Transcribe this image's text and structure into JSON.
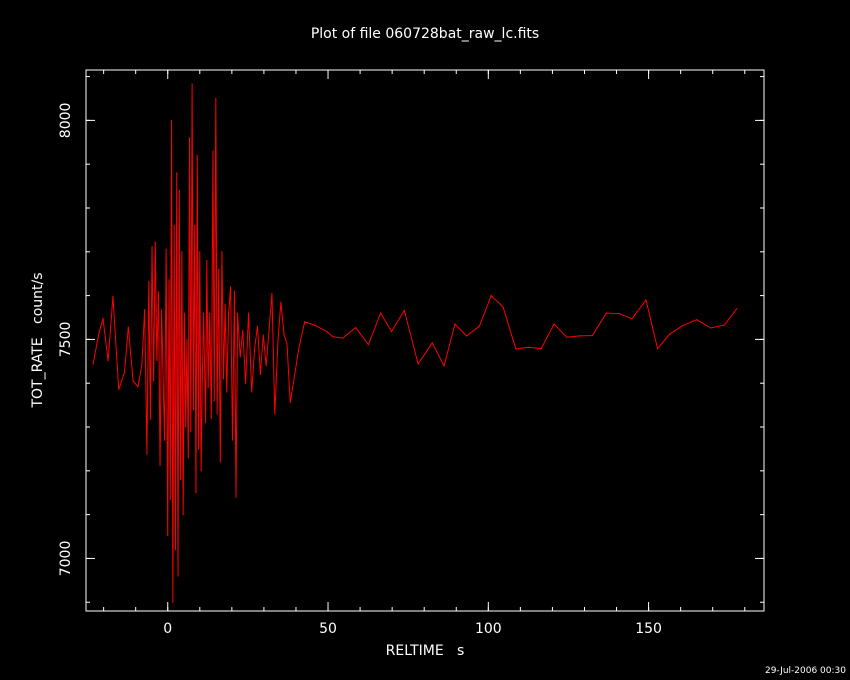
{
  "chart_data": {
    "type": "line",
    "title": "Plot of file 060728bat_raw_lc.fits",
    "xlabel": "RELTIME   s",
    "ylabel": "TOT_RATE   count/s",
    "xlim": [
      -25.5,
      186
    ],
    "ylim": [
      6880,
      8115
    ],
    "x_ticks": [
      0,
      50,
      100,
      150
    ],
    "y_ticks": [
      7000,
      7500,
      8000
    ],
    "x_minor_step": 10,
    "y_minor_step": 100,
    "line_color": "#ff0000",
    "axis_color": "#ffffff",
    "background": "#000000",
    "series": [
      {
        "values": [
          [
            -23.3,
            7444
          ],
          [
            -21.4,
            7516
          ],
          [
            -20.2,
            7548
          ],
          [
            -18.6,
            7451
          ],
          [
            -17.1,
            7598
          ],
          [
            -15.3,
            7386
          ],
          [
            -13.5,
            7424
          ],
          [
            -12.3,
            7528
          ],
          [
            -10.8,
            7405
          ],
          [
            -9.3,
            7392
          ],
          [
            -8.1,
            7440
          ],
          [
            -7.2,
            7568
          ],
          [
            -6.5,
            7238
          ],
          [
            -5.9,
            7632
          ],
          [
            -5.4,
            7318
          ],
          [
            -4.9,
            7712
          ],
          [
            -4.4,
            7405
          ],
          [
            -3.9,
            7722
          ],
          [
            -3.4,
            7452
          ],
          [
            -2.9,
            7608
          ],
          [
            -2.4,
            7212
          ],
          [
            -1.9,
            7568
          ],
          [
            -1.5,
            7430
          ],
          [
            -1.0,
            7270
          ],
          [
            -0.5,
            7706
          ],
          [
            0.0,
            7052
          ],
          [
            0.4,
            7636
          ],
          [
            0.8,
            7135
          ],
          [
            1.2,
            8000
          ],
          [
            1.6,
            6900
          ],
          [
            2.0,
            7760
          ],
          [
            2.4,
            7020
          ],
          [
            2.8,
            7880
          ],
          [
            3.2,
            6960
          ],
          [
            3.6,
            7840
          ],
          [
            4.0,
            7180
          ],
          [
            4.4,
            7700
          ],
          [
            4.8,
            7100
          ],
          [
            5.2,
            7560
          ],
          [
            5.6,
            7300
          ],
          [
            6.0,
            7500
          ],
          [
            6.4,
            7230
          ],
          [
            6.8,
            7960
          ],
          [
            7.2,
            7290
          ],
          [
            7.6,
            8083
          ],
          [
            8.0,
            7340
          ],
          [
            8.4,
            7760
          ],
          [
            8.8,
            7150
          ],
          [
            9.2,
            7920
          ],
          [
            9.6,
            7250
          ],
          [
            10.0,
            7700
          ],
          [
            10.4,
            7200
          ],
          [
            10.8,
            7420
          ],
          [
            11.2,
            7560
          ],
          [
            11.8,
            7310
          ],
          [
            12.2,
            7680
          ],
          [
            12.6,
            7390
          ],
          [
            13.1,
            7560
          ],
          [
            13.6,
            7320
          ],
          [
            14.1,
            7930
          ],
          [
            14.5,
            7360
          ],
          [
            15.0,
            8050
          ],
          [
            15.4,
            7330
          ],
          [
            15.9,
            7660
          ],
          [
            16.4,
            7220
          ],
          [
            16.9,
            7700
          ],
          [
            17.4,
            7410
          ],
          [
            17.9,
            7580
          ],
          [
            18.4,
            7380
          ],
          [
            19.0,
            7560
          ],
          [
            19.6,
            7620
          ],
          [
            20.2,
            7270
          ],
          [
            20.8,
            7610
          ],
          [
            21.3,
            7140
          ],
          [
            21.8,
            7560
          ],
          [
            22.6,
            7460
          ],
          [
            23.4,
            7520
          ],
          [
            24.3,
            7400
          ],
          [
            25.2,
            7560
          ],
          [
            26.2,
            7380
          ],
          [
            27.1,
            7480
          ],
          [
            28.0,
            7530
          ],
          [
            28.9,
            7420
          ],
          [
            29.8,
            7510
          ],
          [
            30.7,
            7440
          ],
          [
            31.7,
            7530
          ],
          [
            32.5,
            7605
          ],
          [
            33.4,
            7330
          ],
          [
            34.4,
            7500
          ],
          [
            35.3,
            7585
          ],
          [
            36.3,
            7510
          ],
          [
            37.2,
            7490
          ],
          [
            38.2,
            7356
          ],
          [
            39.4,
            7410
          ],
          [
            40.9,
            7480
          ],
          [
            42.7,
            7540
          ],
          [
            46.0,
            7532
          ],
          [
            49.6,
            7518
          ],
          [
            51.5,
            7506
          ],
          [
            54.6,
            7503
          ],
          [
            58.6,
            7527
          ],
          [
            62.6,
            7488
          ],
          [
            66.4,
            7560
          ],
          [
            69.8,
            7518
          ],
          [
            73.8,
            7566
          ],
          [
            78.1,
            7444
          ],
          [
            82.5,
            7492
          ],
          [
            86.2,
            7440
          ],
          [
            89.6,
            7535
          ],
          [
            93.2,
            7508
          ],
          [
            97.2,
            7530
          ],
          [
            100.9,
            7600
          ],
          [
            104.6,
            7574
          ],
          [
            108.6,
            7478
          ],
          [
            112.5,
            7482
          ],
          [
            116.5,
            7479
          ],
          [
            120.5,
            7535
          ],
          [
            124.5,
            7505
          ],
          [
            128.5,
            7508
          ],
          [
            132.5,
            7509
          ],
          [
            136.8,
            7560
          ],
          [
            140.8,
            7559
          ],
          [
            144.8,
            7547
          ],
          [
            149.2,
            7590
          ],
          [
            152.8,
            7479
          ],
          [
            156.6,
            7512
          ],
          [
            160.5,
            7531
          ],
          [
            165.0,
            7545
          ],
          [
            169.4,
            7526
          ],
          [
            173.7,
            7533
          ],
          [
            177.5,
            7570
          ]
        ]
      }
    ]
  },
  "footer": {
    "timestamp": "29-Jul-2006 00:30"
  }
}
